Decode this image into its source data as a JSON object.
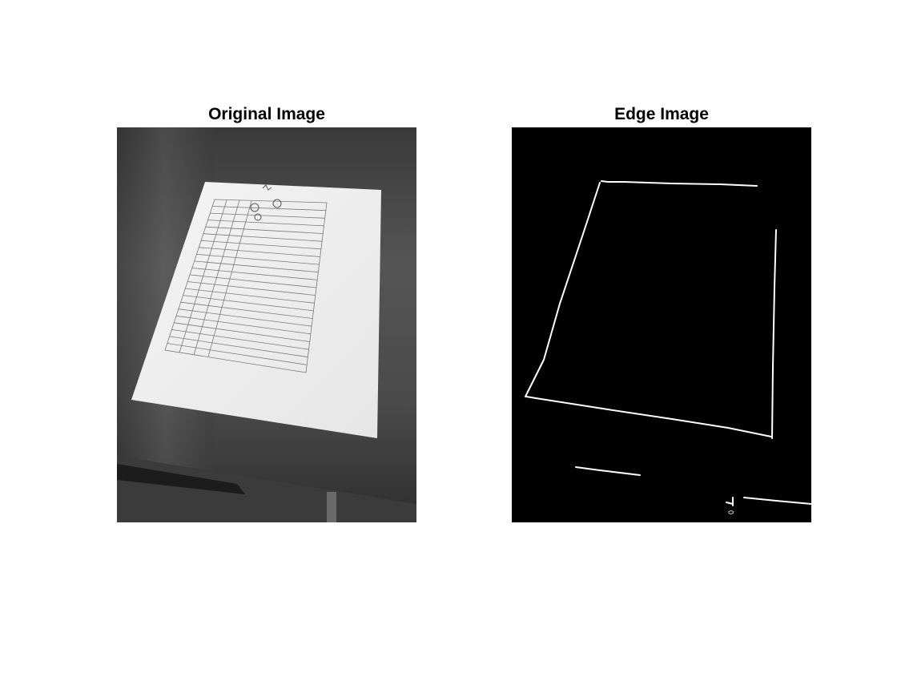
{
  "figure": {
    "left_title": "Original Image",
    "right_title": "Edge Image"
  },
  "colors": {
    "background": "#ffffff",
    "edge_background": "#000000",
    "edge_line": "#ffffff"
  }
}
